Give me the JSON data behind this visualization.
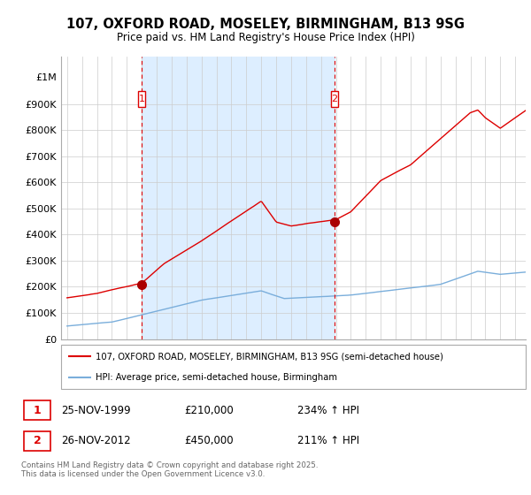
{
  "title": "107, OXFORD ROAD, MOSELEY, BIRMINGHAM, B13 9SG",
  "subtitle": "Price paid vs. HM Land Registry's House Price Index (HPI)",
  "x_start_year": 1995,
  "x_end_year": 2025,
  "y_min": 0,
  "y_max": 1000000,
  "y_ticks": [
    0,
    100000,
    200000,
    300000,
    400000,
    500000,
    600000,
    700000,
    800000,
    900000
  ],
  "y_tick_labels": [
    "£0",
    "£100K",
    "£200K",
    "£300K",
    "£400K",
    "£500K",
    "£600K",
    "£700K",
    "£800K",
    "£900K"
  ],
  "y_top_label": "£1M",
  "sale1_year": 2000.0,
  "sale1_price": 210000,
  "sale1_label": "1",
  "sale1_date": "25-NOV-1999",
  "sale1_price_str": "£210,000",
  "sale1_hpi": "234% ↑ HPI",
  "sale2_year": 2012.9,
  "sale2_price": 450000,
  "sale2_label": "2",
  "sale2_date": "26-NOV-2012",
  "sale2_price_str": "£450,000",
  "sale2_hpi": "211% ↑ HPI",
  "legend_line1": "107, OXFORD ROAD, MOSELEY, BIRMINGHAM, B13 9SG (semi-detached house)",
  "legend_line2": "HPI: Average price, semi-detached house, Birmingham",
  "footer": "Contains HM Land Registry data © Crown copyright and database right 2025.\nThis data is licensed under the Open Government Licence v3.0.",
  "line_color_red": "#dd0000",
  "line_color_blue": "#7aaedb",
  "shade_color": "#ddeeff",
  "bg_color": "#ffffff",
  "grid_color": "#cccccc"
}
